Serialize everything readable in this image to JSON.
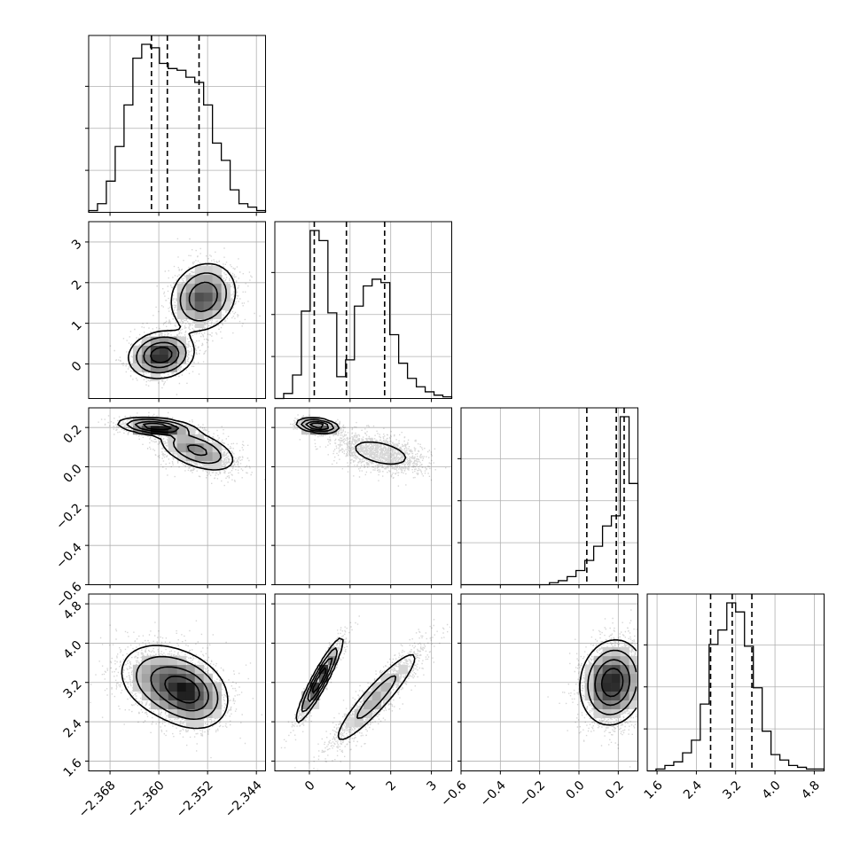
{
  "chart_data": {
    "type": "corner",
    "grid": true,
    "parameters": [
      {
        "range": [
          -2.3715,
          -2.3425
        ],
        "ticks": [
          -2.368,
          -2.36,
          -2.352,
          -2.344
        ],
        "tick_labels": [
          "−2.368",
          "−2.360",
          "−2.352",
          "−2.344"
        ]
      },
      {
        "range": [
          -0.85,
          3.5
        ],
        "ticks": [
          0,
          1,
          2,
          3
        ],
        "tick_labels": [
          "0",
          "1",
          "2",
          "3"
        ]
      },
      {
        "range": [
          -0.6,
          0.3
        ],
        "ticks": [
          -0.6,
          -0.4,
          -0.2,
          0.0,
          0.2
        ],
        "tick_labels": [
          "−0.6",
          "−0.4",
          "−0.2",
          "0.0",
          "0.2"
        ]
      },
      {
        "range": [
          1.4,
          5.0
        ],
        "ticks": [
          1.6,
          2.4,
          3.2,
          4.0,
          4.8
        ],
        "tick_labels": [
          "1.6",
          "2.4",
          "3.2",
          "4.0",
          "4.8"
        ]
      }
    ],
    "quantiles": [
      [
        -2.3612,
        -2.3586,
        -2.3534
      ],
      [
        0.12,
        0.91,
        1.85
      ],
      [
        0.04,
        0.19,
        0.23
      ],
      [
        2.69,
        3.13,
        3.53
      ]
    ],
    "histograms": [
      {
        "edges_start": -2.3715,
        "bin_width": 0.00145,
        "counts": [
          0.01,
          0.05,
          0.18,
          0.38,
          0.62,
          0.89,
          0.97,
          0.95,
          0.86,
          0.83,
          0.82,
          0.78,
          0.75,
          0.62,
          0.4,
          0.3,
          0.13,
          0.05,
          0.03,
          0.01
        ]
      },
      {
        "edges_start": -0.85,
        "bin_width": 0.2175,
        "counts": [
          0.0,
          0.03,
          0.14,
          0.52,
          1.0,
          0.94,
          0.51,
          0.13,
          0.23,
          0.55,
          0.67,
          0.71,
          0.69,
          0.38,
          0.21,
          0.12,
          0.07,
          0.04,
          0.02,
          0.01
        ]
      },
      {
        "edges_start": -0.6,
        "bin_width": 0.045,
        "counts": [
          0.0,
          0.0,
          0.0,
          0.0,
          0.0,
          0.0,
          0.0,
          0.0,
          0.0,
          0.0,
          0.01,
          0.02,
          0.04,
          0.07,
          0.12,
          0.19,
          0.29,
          0.34,
          0.83,
          0.5
        ]
      },
      {
        "edges_start": 1.4,
        "bin_width": 0.18,
        "counts": [
          0.0,
          0.01,
          0.03,
          0.05,
          0.1,
          0.17,
          0.37,
          0.7,
          0.78,
          0.93,
          0.88,
          0.69,
          0.46,
          0.22,
          0.09,
          0.06,
          0.03,
          0.02,
          0.01,
          0.01
        ]
      }
    ],
    "scatter_panels": [
      {
        "pair": [
          0,
          1
        ],
        "modes": [
          {
            "center": [
              -2.3596,
              0.22
            ],
            "sd": [
              0.0026,
              0.28
            ],
            "rho": 0.12,
            "weight": 0.45
          },
          {
            "center": [
              -2.3527,
              1.65
            ],
            "sd": [
              0.0027,
              0.42
            ],
            "rho": 0.15,
            "weight": 0.55
          }
        ]
      },
      {
        "pair": [
          0,
          2
        ],
        "modes": [
          {
            "center": [
              -2.3605,
              0.205
            ],
            "sd": [
              0.003,
              0.022
            ],
            "rho": -0.35,
            "weight": 0.4
          },
          {
            "center": [
              -2.3537,
              0.085
            ],
            "sd": [
              0.0032,
              0.055
            ],
            "rho": -0.5,
            "weight": 0.6
          }
        ]
      },
      {
        "pair": [
          0,
          3
        ],
        "modes": [
          {
            "center": [
              -2.3588,
              3.22
            ],
            "sd": [
              0.004,
              0.4
            ],
            "rho": -0.25,
            "weight": 0.6
          },
          {
            "center": [
              -2.3545,
              2.95
            ],
            "sd": [
              0.003,
              0.35
            ],
            "rho": -0.2,
            "weight": 0.4
          }
        ]
      },
      {
        "pair": [
          1,
          2
        ],
        "modes": [
          {
            "center": [
              0.2,
              0.21
            ],
            "sd": [
              0.25,
              0.018
            ],
            "rho": -0.3,
            "weight": 0.45
          },
          {
            "center": [
              1.75,
              0.07
            ],
            "sd": [
              0.55,
              0.05
            ],
            "rho": -0.45,
            "weight": 0.55
          }
        ]
      },
      {
        "pair": [
          1,
          3
        ],
        "modes": [
          {
            "center": [
              0.25,
              3.25
            ],
            "sd": [
              0.28,
              0.42
            ],
            "rho": 0.93,
            "weight": 0.45
          },
          {
            "center": [
              1.65,
              2.9
            ],
            "sd": [
              0.6,
              0.55
            ],
            "rho": 0.92,
            "weight": 0.55
          }
        ]
      },
      {
        "pair": [
          2,
          3
        ],
        "modes": [
          {
            "center": [
              0.17,
              3.2
            ],
            "sd": [
              0.08,
              0.42
            ],
            "rho": 0.1,
            "weight": 1.0
          }
        ]
      }
    ]
  }
}
